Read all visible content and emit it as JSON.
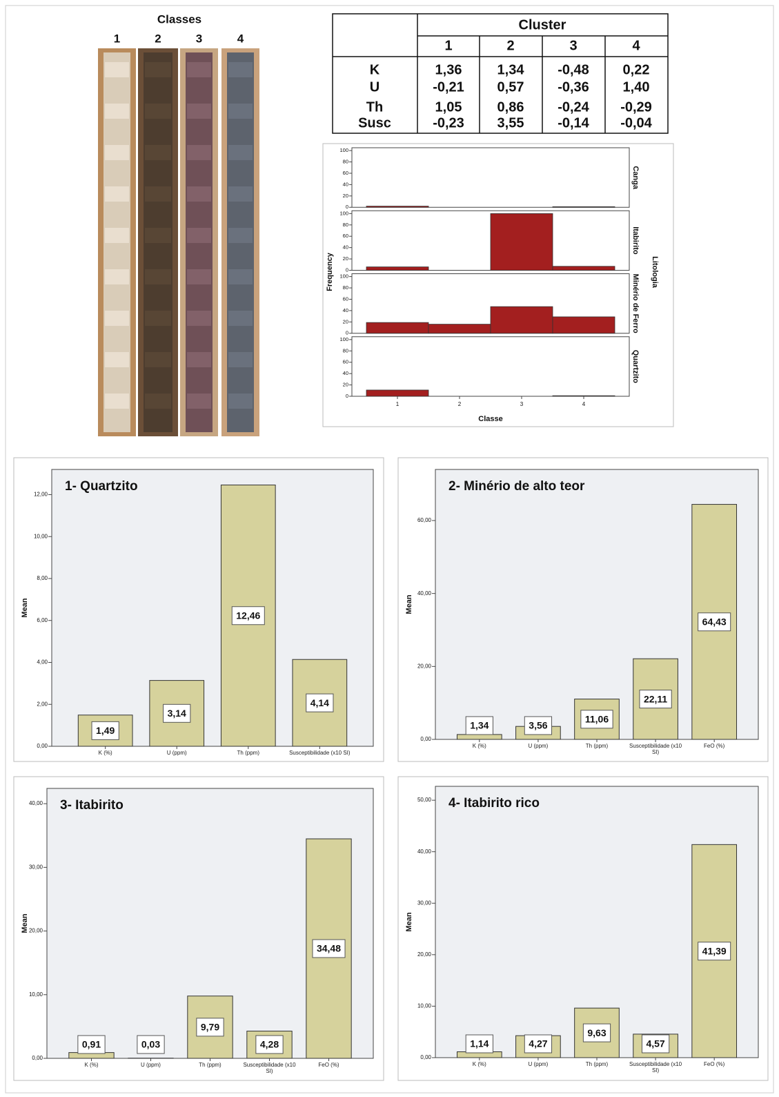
{
  "photo": {
    "title": "Classes",
    "labels": [
      "1",
      "2",
      "3",
      "4"
    ]
  },
  "table": {
    "header": "Cluster",
    "columns": [
      "1",
      "2",
      "3",
      "4"
    ],
    "rows": [
      [
        "K",
        "1,36",
        "1,34",
        "-0,48",
        "0,22"
      ],
      [
        "U",
        "-0,21",
        "0,57",
        "-0,36",
        "1,40"
      ],
      [
        "Th",
        "1,05",
        "0,86",
        "-0,24",
        "-0,29"
      ],
      [
        "Susc",
        "-0,23",
        "3,55",
        "-0,14",
        "-0,04"
      ]
    ]
  },
  "chart_data": [
    {
      "type": "facet",
      "x_label": "Classe",
      "y_label": "Frequency",
      "facet_label": "Litologia",
      "categories": [
        "1",
        "2",
        "3",
        "4"
      ],
      "ylim": [
        0,
        105
      ],
      "yticks": [
        0,
        20,
        40,
        60,
        80,
        100
      ],
      "color": "#a31f1f",
      "series": [
        {
          "name": "Canga",
          "values": [
            2,
            0,
            0,
            1
          ]
        },
        {
          "name": "Itabirito",
          "values": [
            6,
            0,
            100,
            7
          ]
        },
        {
          "name": "Minério de Ferro",
          "values": [
            19,
            16,
            47,
            29
          ]
        },
        {
          "name": "Quartzito",
          "values": [
            11,
            0,
            0,
            1
          ]
        }
      ]
    },
    {
      "type": "bar",
      "title": "1- Quartzito",
      "y_label": "Mean",
      "color": "#d6d29c",
      "categories": [
        "K (%)",
        "U (ppm)",
        "Th (ppm)",
        "Susceptibilidade (x10  SI)"
      ],
      "values": [
        1.49,
        3.14,
        12.46,
        4.14
      ],
      "value_labels": [
        "1,49",
        "3,14",
        "12,46",
        "4,14"
      ],
      "ylim": [
        0,
        13.2
      ],
      "yticks": [
        {
          "value": 0,
          "label": "0,00"
        },
        {
          "value": 2,
          "label": "2,00"
        },
        {
          "value": 4,
          "label": "4,00"
        },
        {
          "value": 6,
          "label": "6,00"
        },
        {
          "value": 8,
          "label": "8,00"
        },
        {
          "value": 10,
          "label": "10,00"
        },
        {
          "value": 12,
          "label": "12,00"
        }
      ]
    },
    {
      "type": "bar",
      "title": "2- Minério de alto teor",
      "y_label": "Mean",
      "color": "#d6d29c",
      "categories": [
        "K (%)",
        "U (ppm)",
        "Th (ppm)",
        "Susceptibilidade (x10  SI)",
        "FeO (%)"
      ],
      "values": [
        1.34,
        3.56,
        11.06,
        22.11,
        64.43
      ],
      "value_labels": [
        "1,34",
        "3,56",
        "11,06",
        "22,11",
        "64,43"
      ],
      "ylim": [
        0,
        74
      ],
      "yticks": [
        {
          "value": 0,
          "label": "0,00"
        },
        {
          "value": 20,
          "label": "20,00"
        },
        {
          "value": 40,
          "label": "40,00"
        },
        {
          "value": 60,
          "label": "60,00"
        }
      ]
    },
    {
      "type": "bar",
      "title": "3- Itabirito",
      "y_label": "Mean",
      "color": "#d6d29c",
      "categories": [
        "K (%)",
        "U (ppm)",
        "Th (ppm)",
        "Susceptibilidade (x10  SI)",
        "FeO (%)"
      ],
      "values": [
        0.91,
        0.03,
        9.79,
        4.28,
        34.48
      ],
      "value_labels": [
        "0,91",
        "0,03",
        "9,79",
        "4,28",
        "34,48"
      ],
      "ylim": [
        0,
        42.4
      ],
      "yticks": [
        {
          "value": 0,
          "label": "0,00"
        },
        {
          "value": 10,
          "label": "10,00"
        },
        {
          "value": 20,
          "label": "20,00"
        },
        {
          "value": 30,
          "label": "30,00"
        },
        {
          "value": 40,
          "label": "40,00"
        }
      ]
    },
    {
      "type": "bar",
      "title": "4- Itabirito rico",
      "y_label": "Mean",
      "color": "#d6d29c",
      "categories": [
        "K (%)",
        "U (ppm)",
        "Th (ppm)",
        "Susceptibilidade (x10  SI)",
        "FeO (%)"
      ],
      "values": [
        1.14,
        4.27,
        9.63,
        4.57,
        41.39
      ],
      "value_labels": [
        "1,14",
        "4,27",
        "9,63",
        "4,57",
        "41,39"
      ],
      "ylim": [
        0,
        52.7
      ],
      "yticks": [
        {
          "value": 0,
          "label": "0,00"
        },
        {
          "value": 10,
          "label": "10,00"
        },
        {
          "value": 20,
          "label": "20,00"
        },
        {
          "value": 30,
          "label": "30,00"
        },
        {
          "value": 40,
          "label": "40,00"
        },
        {
          "value": 50,
          "label": "50,00"
        }
      ]
    }
  ]
}
